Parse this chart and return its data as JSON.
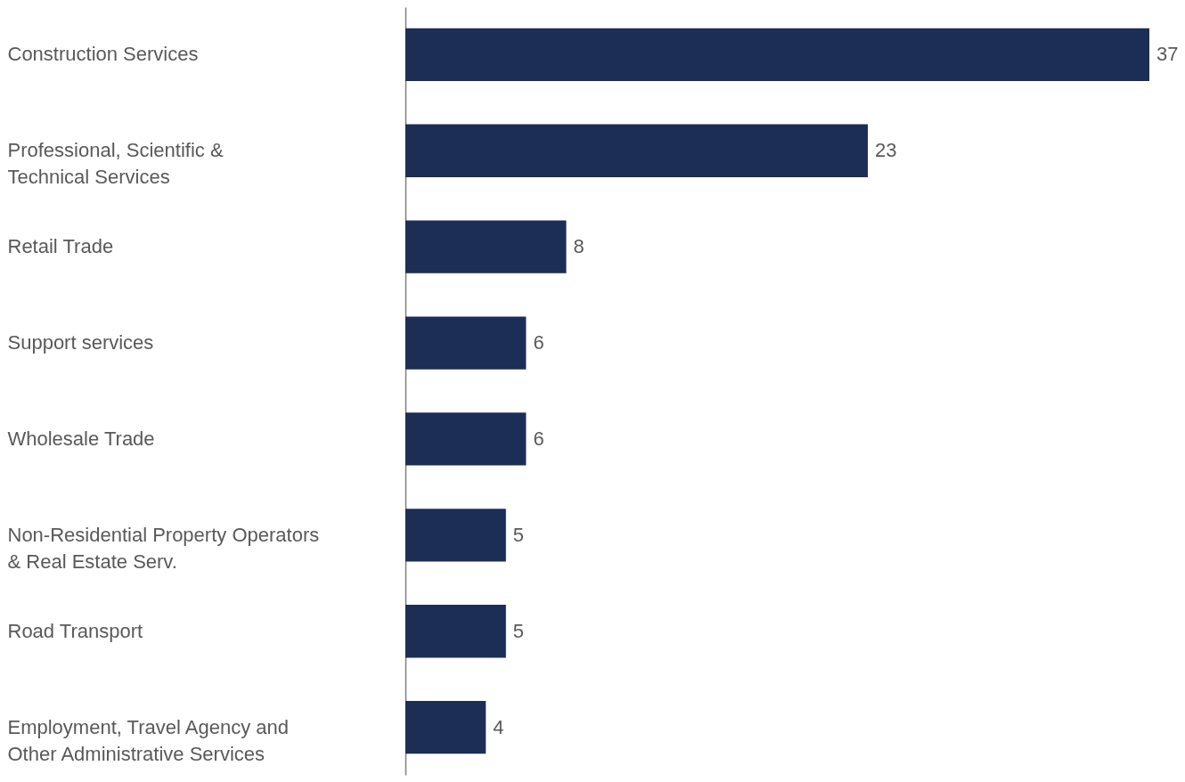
{
  "chart_data": {
    "type": "bar",
    "orientation": "horizontal",
    "data_labels": true,
    "color": "#1c2d56",
    "categories": [
      "Construction Services",
      "Professional, Scientific & Technical Services",
      "Retail Trade",
      "Support services",
      "Wholesale Trade",
      "Non-Residential Property Operators & Real Estate Serv.",
      "Road Transport",
      "Employment, Travel Agency and Other Administrative Services"
    ],
    "values": [
      37,
      23,
      8,
      6,
      6,
      5,
      5,
      4
    ]
  }
}
